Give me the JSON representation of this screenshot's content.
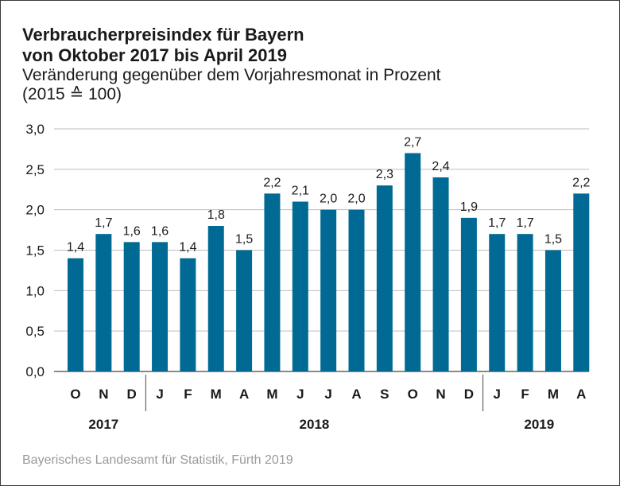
{
  "title_line1": "Verbraucherpreisindex für Bayern",
  "title_line2": "von Oktober 2017 bis April 2019",
  "subtitle_line1": "Veränderung gegenüber dem Vorjahresmonat in Prozent",
  "subtitle_line2": "(2015 ≙ 100)",
  "source": "Bayerisches Landesamt für Statistik, Fürth 2019",
  "chart_data": {
    "type": "bar",
    "categories": [
      "O",
      "N",
      "D",
      "J",
      "F",
      "M",
      "A",
      "M",
      "J",
      "J",
      "A",
      "S",
      "O",
      "N",
      "D",
      "J",
      "F",
      "M",
      "A"
    ],
    "values": [
      1.4,
      1.7,
      1.6,
      1.6,
      1.4,
      1.8,
      1.5,
      2.2,
      2.1,
      2.0,
      2.0,
      2.3,
      2.7,
      2.4,
      1.9,
      1.7,
      1.7,
      1.5,
      2.2
    ],
    "value_labels": [
      "1,4",
      "1,7",
      "1,6",
      "1,6",
      "1,4",
      "1,8",
      "1,5",
      "2,2",
      "2,1",
      "2,0",
      "2,0",
      "2,3",
      "2,7",
      "2,4",
      "1,9",
      "1,7",
      "1,7",
      "1,5",
      "2,2"
    ],
    "y_ticks": [
      "0,0",
      "0,5",
      "1,0",
      "1,5",
      "2,0",
      "2,5",
      "3,0"
    ],
    "ylim": [
      0,
      3
    ],
    "year_groups": [
      {
        "label": "2017",
        "count": 3
      },
      {
        "label": "2018",
        "count": 12
      },
      {
        "label": "2019",
        "count": 4
      }
    ],
    "bar_color": "#006a94",
    "grid": true
  }
}
